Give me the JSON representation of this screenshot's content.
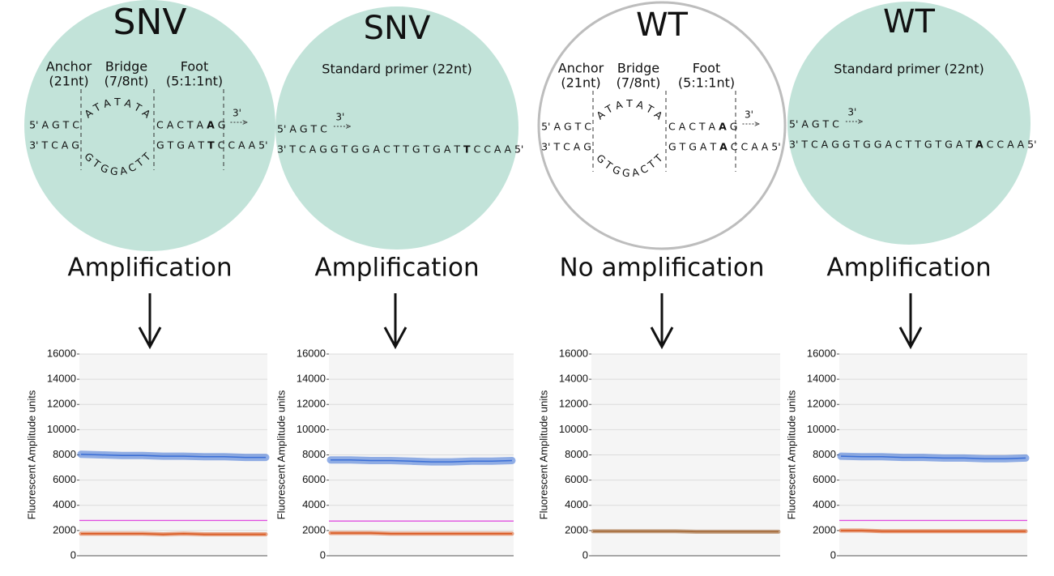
{
  "panels": [
    {
      "heading": "SNV",
      "result": "Amplification",
      "primer_end": "3'",
      "regions": [
        {
          "name": "Anchor",
          "length": "(21nt)"
        },
        {
          "name": "Bridge",
          "length": "(7/8nt)"
        },
        {
          "name": "Foot",
          "length": "(5:1:1nt)"
        }
      ],
      "top_strand": [
        {
          "text": "5' A G T C"
        },
        {
          "text": "A T A T A T A",
          "arc": true
        },
        {
          "text": "C A C T A"
        },
        {
          "text": "A",
          "mismatch": true
        },
        {
          "text": "G"
        }
      ],
      "bottom_strand": [
        {
          "text": "3' T C A G"
        },
        {
          "text": "G T G G A C T T",
          "arc": true
        },
        {
          "text": "G T G A T"
        },
        {
          "text": "T",
          "mismatch": true
        },
        {
          "text": "C"
        },
        {
          "text": "C A A 5'",
          "overhang": true
        }
      ]
    },
    {
      "heading": "SNV",
      "result": "Amplification",
      "primer_end": "3'",
      "primer": "Standard primer (22nt)",
      "top_strand": [
        {
          "text": "5' A G T C"
        }
      ],
      "bottom_strand": [
        {
          "text": "3' T C A G G T G G A C T T G T G A T"
        },
        {
          "text": "T",
          "mismatch": true
        },
        {
          "text": "C C A A 5'"
        }
      ]
    },
    {
      "heading": "WT",
      "result": "No amplification",
      "primer_end": "3'",
      "regions": [
        {
          "name": "Anchor",
          "length": "(21nt)"
        },
        {
          "name": "Bridge",
          "length": "(7/8nt)"
        },
        {
          "name": "Foot",
          "length": "(5:1:1nt)"
        }
      ],
      "top_strand": [
        {
          "text": "5' A G T C"
        },
        {
          "text": "A T A T A T A",
          "arc": true
        },
        {
          "text": "C A C T A"
        },
        {
          "text": "A",
          "mismatch": true
        },
        {
          "text": "G"
        }
      ],
      "bottom_strand": [
        {
          "text": "3' T C A G"
        },
        {
          "text": "G T G G A C T T",
          "arc": true
        },
        {
          "text": "G T G A T"
        },
        {
          "text": "A",
          "mismatch": true
        },
        {
          "text": "C"
        },
        {
          "text": "C A A 5'",
          "overhang": true
        }
      ]
    },
    {
      "heading": "WT",
      "result": "Amplification",
      "primer_end": "3'",
      "primer": "Standard primer (22nt)",
      "top_strand": [
        {
          "text": "5' A G T C"
        }
      ],
      "bottom_strand": [
        {
          "text": "3' T C A G G T G G A C T T G T G A T"
        },
        {
          "text": "A",
          "mismatch": true
        },
        {
          "text": "C C A A 5'"
        }
      ]
    }
  ],
  "chart_data": [
    {
      "type": "scatter",
      "ylabel": "Fluorescent Amplitude units",
      "ylim": [
        0,
        16000
      ],
      "yticks": [
        0,
        2000,
        4000,
        6000,
        8000,
        10000,
        12000,
        14000,
        16000
      ],
      "grid": true,
      "series": [
        {
          "color": "#3b6fd6",
          "values": [
            8050,
            8000,
            7950,
            7950,
            7900,
            7900,
            7850,
            7850,
            7800,
            7800
          ]
        },
        {
          "color": "#d9561c",
          "values": [
            1750,
            1750,
            1750,
            1750,
            1700,
            1750,
            1700,
            1700,
            1700,
            1700
          ]
        }
      ],
      "threshold": 2800,
      "threshold_color": "#e050e0"
    },
    {
      "type": "scatter",
      "ylabel": "Fluorescent Amplitude units",
      "ylim": [
        0,
        16000
      ],
      "yticks": [
        0,
        2000,
        4000,
        6000,
        8000,
        10000,
        12000,
        14000,
        16000
      ],
      "grid": true,
      "series": [
        {
          "color": "#3b6fd6",
          "values": [
            7600,
            7600,
            7550,
            7550,
            7500,
            7450,
            7450,
            7500,
            7500,
            7550
          ]
        },
        {
          "color": "#d9561c",
          "values": [
            1800,
            1800,
            1800,
            1750,
            1750,
            1750,
            1750,
            1750,
            1750,
            1750
          ]
        }
      ],
      "threshold": 2750,
      "threshold_color": "#e050e0"
    },
    {
      "type": "scatter",
      "ylabel": "Fluorescent Amplitude units",
      "ylim": [
        0,
        16000
      ],
      "yticks": [
        0,
        2000,
        4000,
        6000,
        8000,
        10000,
        12000,
        14000,
        16000
      ],
      "grid": true,
      "series": [
        {
          "color": "#a0622e",
          "values": [
            1950,
            1950,
            1950,
            1950,
            1950,
            1900,
            1900,
            1900,
            1900,
            1900
          ]
        }
      ]
    },
    {
      "type": "scatter",
      "ylabel": "Fluorescent Amplitude units",
      "ylim": [
        0,
        16000
      ],
      "yticks": [
        0,
        2000,
        4000,
        6000,
        8000,
        10000,
        12000,
        14000,
        16000
      ],
      "grid": true,
      "series": [
        {
          "color": "#3b6fd6",
          "values": [
            7900,
            7850,
            7850,
            7800,
            7800,
            7750,
            7750,
            7700,
            7700,
            7750
          ]
        },
        {
          "color": "#d9561c",
          "values": [
            2000,
            2000,
            1950,
            1950,
            1950,
            1950,
            1950,
            1950,
            1950,
            1950
          ]
        }
      ],
      "threshold": 2800,
      "threshold_color": "#e050e0"
    }
  ]
}
